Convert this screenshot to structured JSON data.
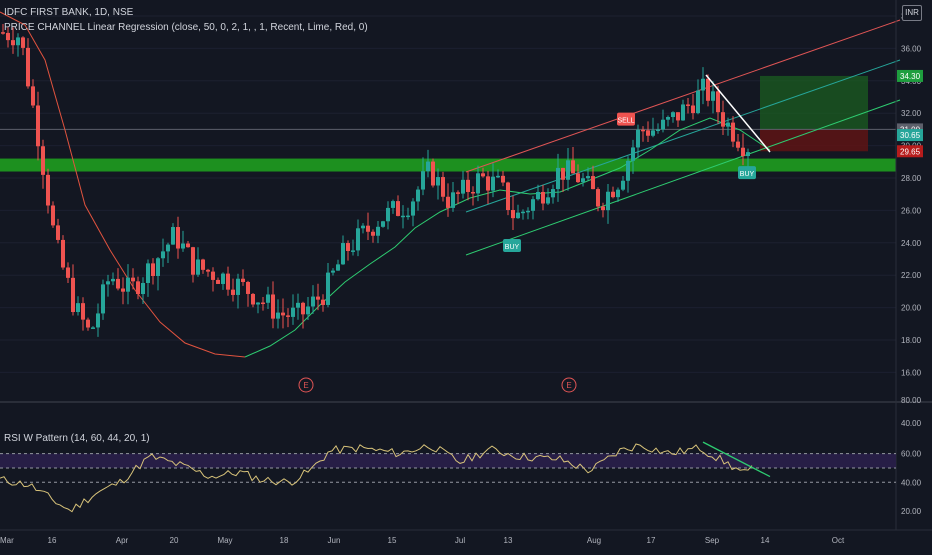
{
  "header": {
    "symbol_line": "IDFC FIRST BANK, 1D, NSE",
    "indicator_line": "PRICE CHANNEL Linear Regression (close, 50, 0, 2, 1, , 1, Recent, Lime, Red, 0)",
    "currency_badge": "INR"
  },
  "rsi_panel": {
    "title": "RSI W Pattern (14, 60, 44, 20, 1)"
  },
  "colors": {
    "background": "#131722",
    "up": "#26a69a",
    "down": "#ef5350",
    "support_zone": "#1f9d1f",
    "rsi_band": "#2a1f4a",
    "rsi_line": "#d8c37a",
    "ma_red": "#e0533f",
    "ma_green": "#2ecc71"
  },
  "chart_data": [
    {
      "type": "candlestick",
      "title": "IDFC FIRST BANK, 1D, NSE",
      "ylim": [
        14.6,
        38.6
      ],
      "yticks": [
        "16.00",
        "18.00",
        "20.00",
        "22.00",
        "24.00",
        "26.00",
        "28.00",
        "30.00",
        "32.00",
        "34.00",
        "36.00",
        "38.00"
      ],
      "xticks": [
        "Mar",
        "16",
        "Apr",
        "20",
        "May",
        "18",
        "Jun",
        "15",
        "Jul",
        "13",
        "Aug",
        "17",
        "Sep",
        "14",
        "Oct"
      ],
      "price_labels": [
        {
          "text": "34.30",
          "value": 34.3,
          "color": "#1e9e3e"
        },
        {
          "text": "31.00",
          "value": 31.0,
          "color": "#5d606b"
        },
        {
          "text": "30.65",
          "value": 30.65,
          "color": "#26a69a"
        },
        {
          "text": "29.65",
          "value": 29.65,
          "color": "#b71c1c"
        }
      ],
      "signals": [
        {
          "text": "SELL",
          "value": 31.6
        },
        {
          "text": "BUY",
          "value": 23.8
        },
        {
          "text": "BUY",
          "value": 28.3
        }
      ],
      "earnings_markers": [
        "E",
        "E"
      ],
      "support_zone": [
        28.4,
        29.2
      ],
      "trade_box": {
        "target": 34.3,
        "entry": 31.0,
        "stop": 29.65
      }
    },
    {
      "type": "line",
      "title": "RSI W Pattern (14, 60, 44, 20, 1)",
      "ylim": [
        12,
        79
      ],
      "yticks": [
        "20.00",
        "40.00",
        "60.00"
      ],
      "upper_levels": [
        "80.00",
        "40.00"
      ],
      "band": [
        50,
        60
      ],
      "reference_lines": [
        60,
        50,
        40
      ]
    }
  ]
}
